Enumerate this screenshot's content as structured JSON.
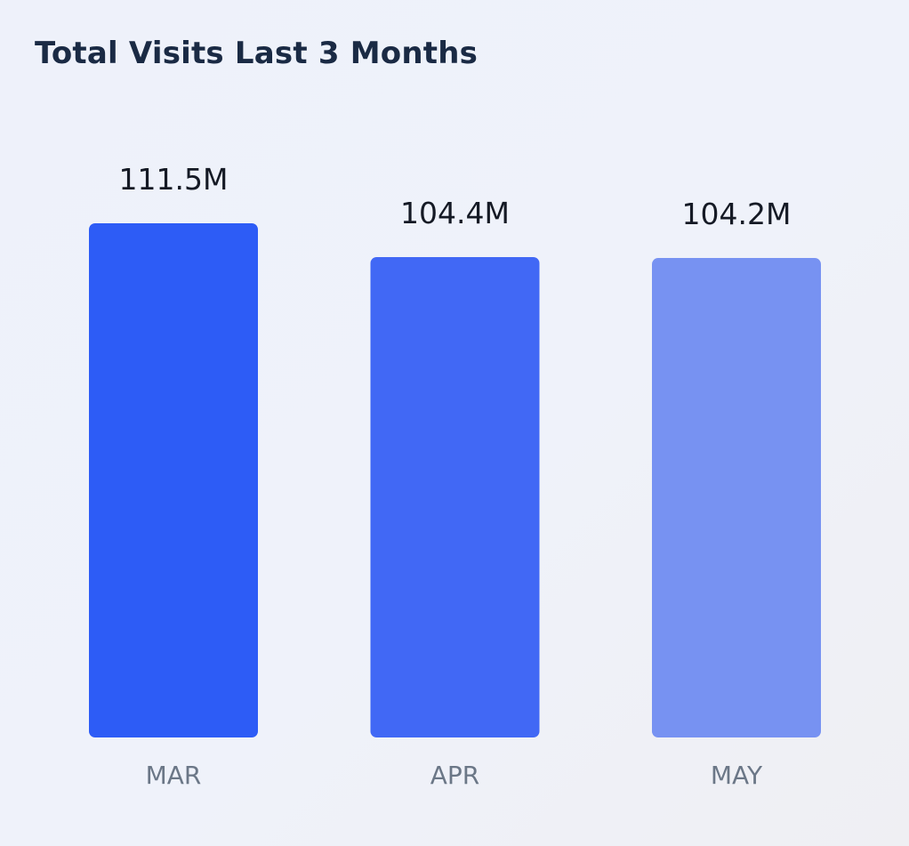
{
  "chart_data": {
    "type": "bar",
    "title": "Total Visits Last 3 Months",
    "categories": [
      "MAR",
      "APR",
      "MAY"
    ],
    "values": [
      111.5,
      104.4,
      104.2
    ],
    "value_labels": [
      "111.5M",
      "104.4M",
      "104.2M"
    ],
    "unit": "M",
    "bar_colors": [
      "#2d5cf6",
      "#4168f5",
      "#7792f2"
    ],
    "xlabel": "",
    "ylabel": "",
    "grid": false,
    "legend": "none"
  }
}
